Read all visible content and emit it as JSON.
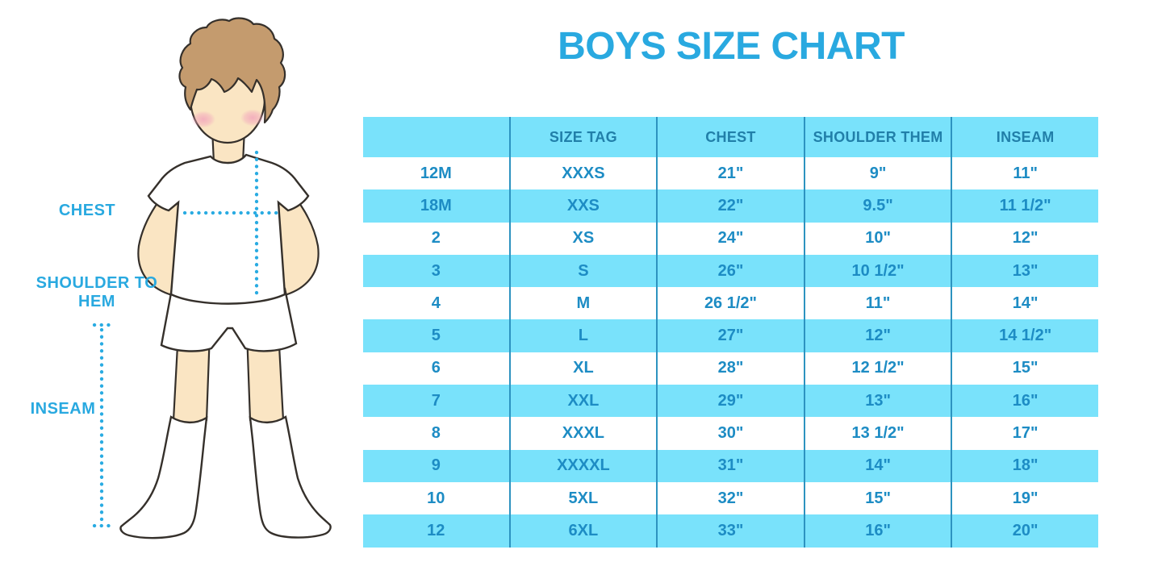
{
  "title": "BOYS SIZE CHART",
  "figure_labels": {
    "chest": "CHEST",
    "shoulder_to_hem": "SHOULDER TO HEM",
    "inseam": "INSEAM"
  },
  "colors": {
    "accent": "#29A9E0",
    "band": "#79E2FB",
    "separator": "#2D93C0",
    "header_text": "#217FA9",
    "cell_text": "#1D8CC4",
    "dotted_line": "#29ABE2",
    "skin": "#FAE5C3",
    "hair": "#C49B6E",
    "outline": "#35302B",
    "blush": "#F2A6BC"
  },
  "chart_data": {
    "type": "table",
    "title": "BOYS SIZE CHART",
    "columns": [
      "",
      "SIZE TAG",
      "CHEST",
      "SHOULDER THEM",
      "INSEAM"
    ],
    "rows": [
      [
        "12M",
        "XXXS",
        "21\"",
        "9\"",
        "11\""
      ],
      [
        "18M",
        "XXS",
        "22\"",
        "9.5\"",
        "11 1/2\""
      ],
      [
        "2",
        "XS",
        "24\"",
        "10\"",
        "12\""
      ],
      [
        "3",
        "S",
        "26\"",
        "10 1/2\"",
        "13\""
      ],
      [
        "4",
        "M",
        "26 1/2\"",
        "11\"",
        "14\""
      ],
      [
        "5",
        "L",
        "27\"",
        "12\"",
        "14 1/2\""
      ],
      [
        "6",
        "XL",
        "28\"",
        "12 1/2\"",
        "15\""
      ],
      [
        "7",
        "XXL",
        "29\"",
        "13\"",
        "16\""
      ],
      [
        "8",
        "XXXL",
        "30\"",
        "13 1/2\"",
        "17\""
      ],
      [
        "9",
        "XXXXL",
        "31\"",
        "14\"",
        "18\""
      ],
      [
        "10",
        "5XL",
        "32\"",
        "15\"",
        "19\""
      ],
      [
        "12",
        "6XL",
        "33\"",
        "16\"",
        "20\""
      ]
    ]
  }
}
